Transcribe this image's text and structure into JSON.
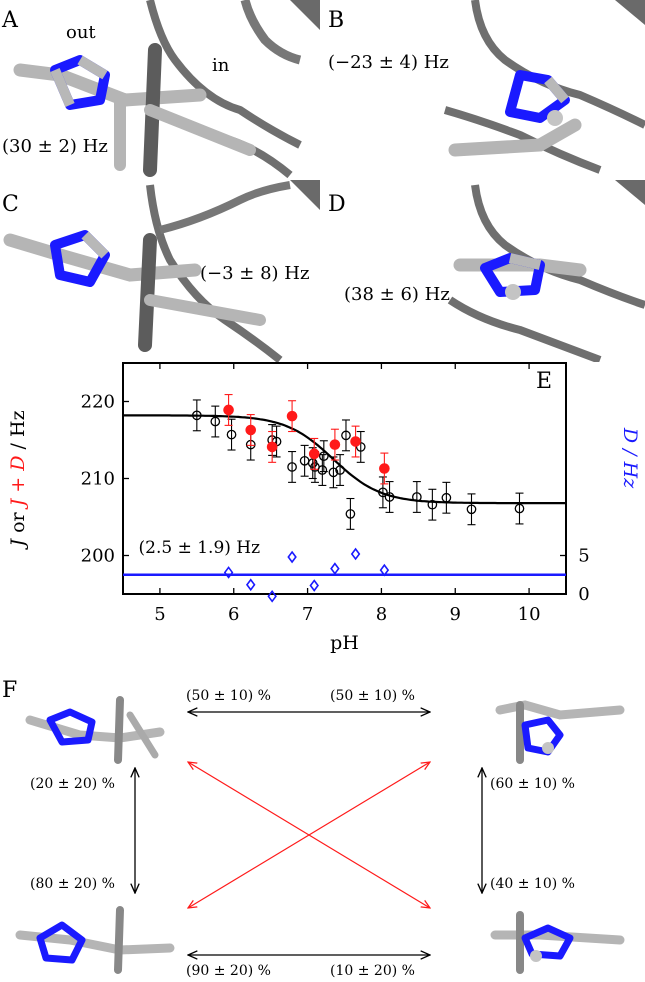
{
  "panels": {
    "A": {
      "letter": "A",
      "out_label": "out",
      "in_label": "in",
      "coupling": "(30 ± 2) Hz"
    },
    "B": {
      "letter": "B",
      "coupling": "(−23 ± 4) Hz"
    },
    "C": {
      "letter": "C",
      "coupling": "(−3 ± 8) Hz"
    },
    "D": {
      "letter": "D",
      "coupling": "(38 ± 6) Hz"
    },
    "F": {
      "letter": "F"
    }
  },
  "colors": {
    "nitrogen": "#1a1aff",
    "carbon": "#b8b8b8",
    "protein": "#777777",
    "red_series": "#ff1a1a",
    "blue_series": "#1a1aff",
    "fit": "#000000"
  },
  "chart_data": {
    "type": "scatter",
    "panel_letter": "E",
    "xlabel": "pH",
    "ylabel_left_parts": [
      "J",
      " or ",
      "J + D",
      " / Hz"
    ],
    "ylabel_right": "D / Hz",
    "annotation": "(2.5 ± 1.9) Hz",
    "xlim": [
      4.5,
      10.5
    ],
    "ylim": [
      195,
      225
    ],
    "ylim_right": [
      0,
      30
    ],
    "x_ticks": [
      5,
      6,
      7,
      8,
      9,
      10
    ],
    "y_ticks": [
      200,
      210,
      220
    ],
    "y_right_ticks": [
      0,
      5
    ],
    "grid": false,
    "series": [
      {
        "name": "J",
        "marker": "open-circle",
        "color": "#000000",
        "x": [
          5.5,
          5.75,
          5.97,
          6.23,
          6.52,
          6.58,
          6.79,
          6.96,
          7.07,
          7.1,
          7.2,
          7.22,
          7.35,
          7.44,
          7.52,
          7.58,
          7.72,
          8.02,
          8.11,
          8.48,
          8.69,
          8.88,
          9.22,
          9.87
        ],
        "y": [
          218.2,
          217.4,
          215.7,
          214.4,
          215.0,
          214.8,
          211.5,
          212.3,
          212.0,
          211.5,
          211.1,
          212.9,
          210.8,
          211.1,
          215.6,
          205.4,
          214.1,
          208.2,
          207.6,
          207.6,
          206.6,
          207.5,
          206.0,
          206.1
        ],
        "yerr": [
          2,
          2,
          2,
          2,
          2,
          2,
          2,
          2,
          2,
          2,
          2,
          2,
          2,
          2,
          2,
          2,
          2,
          2,
          2,
          2,
          2,
          2,
          2,
          2
        ]
      },
      {
        "name": "J + D",
        "marker": "filled-circle",
        "color": "#ff1a1a",
        "x": [
          5.93,
          6.23,
          6.52,
          6.79,
          7.09,
          7.37,
          7.65,
          8.04
        ],
        "y": [
          218.9,
          216.3,
          214.1,
          218.1,
          213.2,
          214.4,
          214.8,
          211.3
        ],
        "yerr": [
          2,
          2,
          2,
          2,
          2,
          2,
          2,
          2
        ]
      },
      {
        "name": "D",
        "marker": "open-diamond",
        "color": "#1a1aff",
        "axis": "right",
        "x": [
          5.93,
          6.23,
          6.52,
          6.79,
          7.09,
          7.37,
          7.65,
          8.04
        ],
        "y": [
          2.8,
          1.2,
          -0.3,
          4.8,
          1.1,
          3.3,
          5.2,
          3.1
        ]
      }
    ],
    "fit": {
      "type": "sigmoid",
      "color": "#000000",
      "upper": 218.2,
      "lower": 206.8,
      "pKa": 7.35,
      "slope": 3.1
    },
    "hline": {
      "axis": "right",
      "value": 2.5,
      "color": "#1a1aff"
    }
  },
  "diagram_F": {
    "top_left_pct": "(50 ± 10) %",
    "top_right_pct": "(50 ± 10) %",
    "left_top_pct": "(20 ± 20) %",
    "left_bottom_pct": "(80 ± 20) %",
    "right_top_pct": "(60 ± 10) %",
    "right_bottom_pct": "(40 ± 10) %",
    "bottom_left_pct": "(90 ± 20) %",
    "bottom_right_pct": "(10 ± 20) %"
  }
}
